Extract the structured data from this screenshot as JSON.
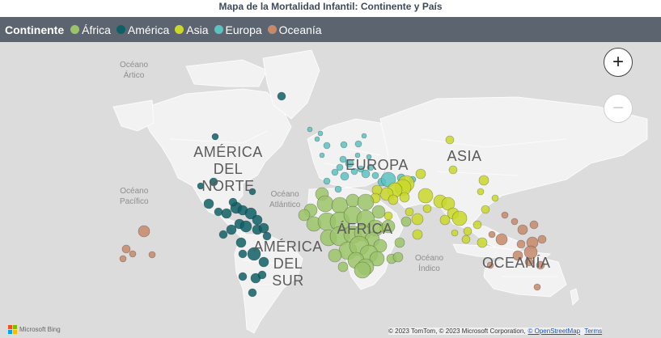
{
  "title": "Mapa de la Mortalidad Infantil: Continente y País",
  "legend": {
    "title": "Continente",
    "items": [
      {
        "label": "África",
        "color": "#9bc46a"
      },
      {
        "label": "América",
        "color": "#0e6066"
      },
      {
        "label": "Asia",
        "color": "#c9d82a"
      },
      {
        "label": "Europa",
        "color": "#5cc2c0"
      },
      {
        "label": "Oceanía",
        "color": "#c68a6a"
      }
    ]
  },
  "map": {
    "oceans": [
      {
        "id": "artico",
        "line1": "Océano",
        "line2": "Ártico"
      },
      {
        "id": "pacifico",
        "line1": "Océano",
        "line2": "Pacífico"
      },
      {
        "id": "atlantico",
        "line1": "Océano",
        "line2": "Atlántico"
      },
      {
        "id": "indico",
        "line1": "Océano",
        "line2": "Índico"
      }
    ],
    "regions": [
      {
        "id": "america-del-norte",
        "lines": [
          "AMÉRICA",
          "DEL",
          "NORTE"
        ]
      },
      {
        "id": "america-del-sur",
        "lines": [
          "AMÉRICA",
          "DEL",
          "SUR"
        ]
      },
      {
        "id": "europa",
        "lines": [
          "EUROPA"
        ]
      },
      {
        "id": "asia",
        "lines": [
          "ASIA"
        ]
      },
      {
        "id": "africa",
        "lines": [
          "ÁFRICA"
        ]
      },
      {
        "id": "oceania",
        "lines": [
          "OCEANÍA"
        ]
      }
    ],
    "zoom_in_icon": "plus-icon",
    "zoom_out_icon": "minus-icon"
  },
  "bing_label": "Microsoft Bing",
  "copyright": {
    "text": "© 2023 TomTom, © 2023 Microsoft Corporation,",
    "osm_link": "© OpenStreetMap",
    "terms_link": "Terms"
  }
}
